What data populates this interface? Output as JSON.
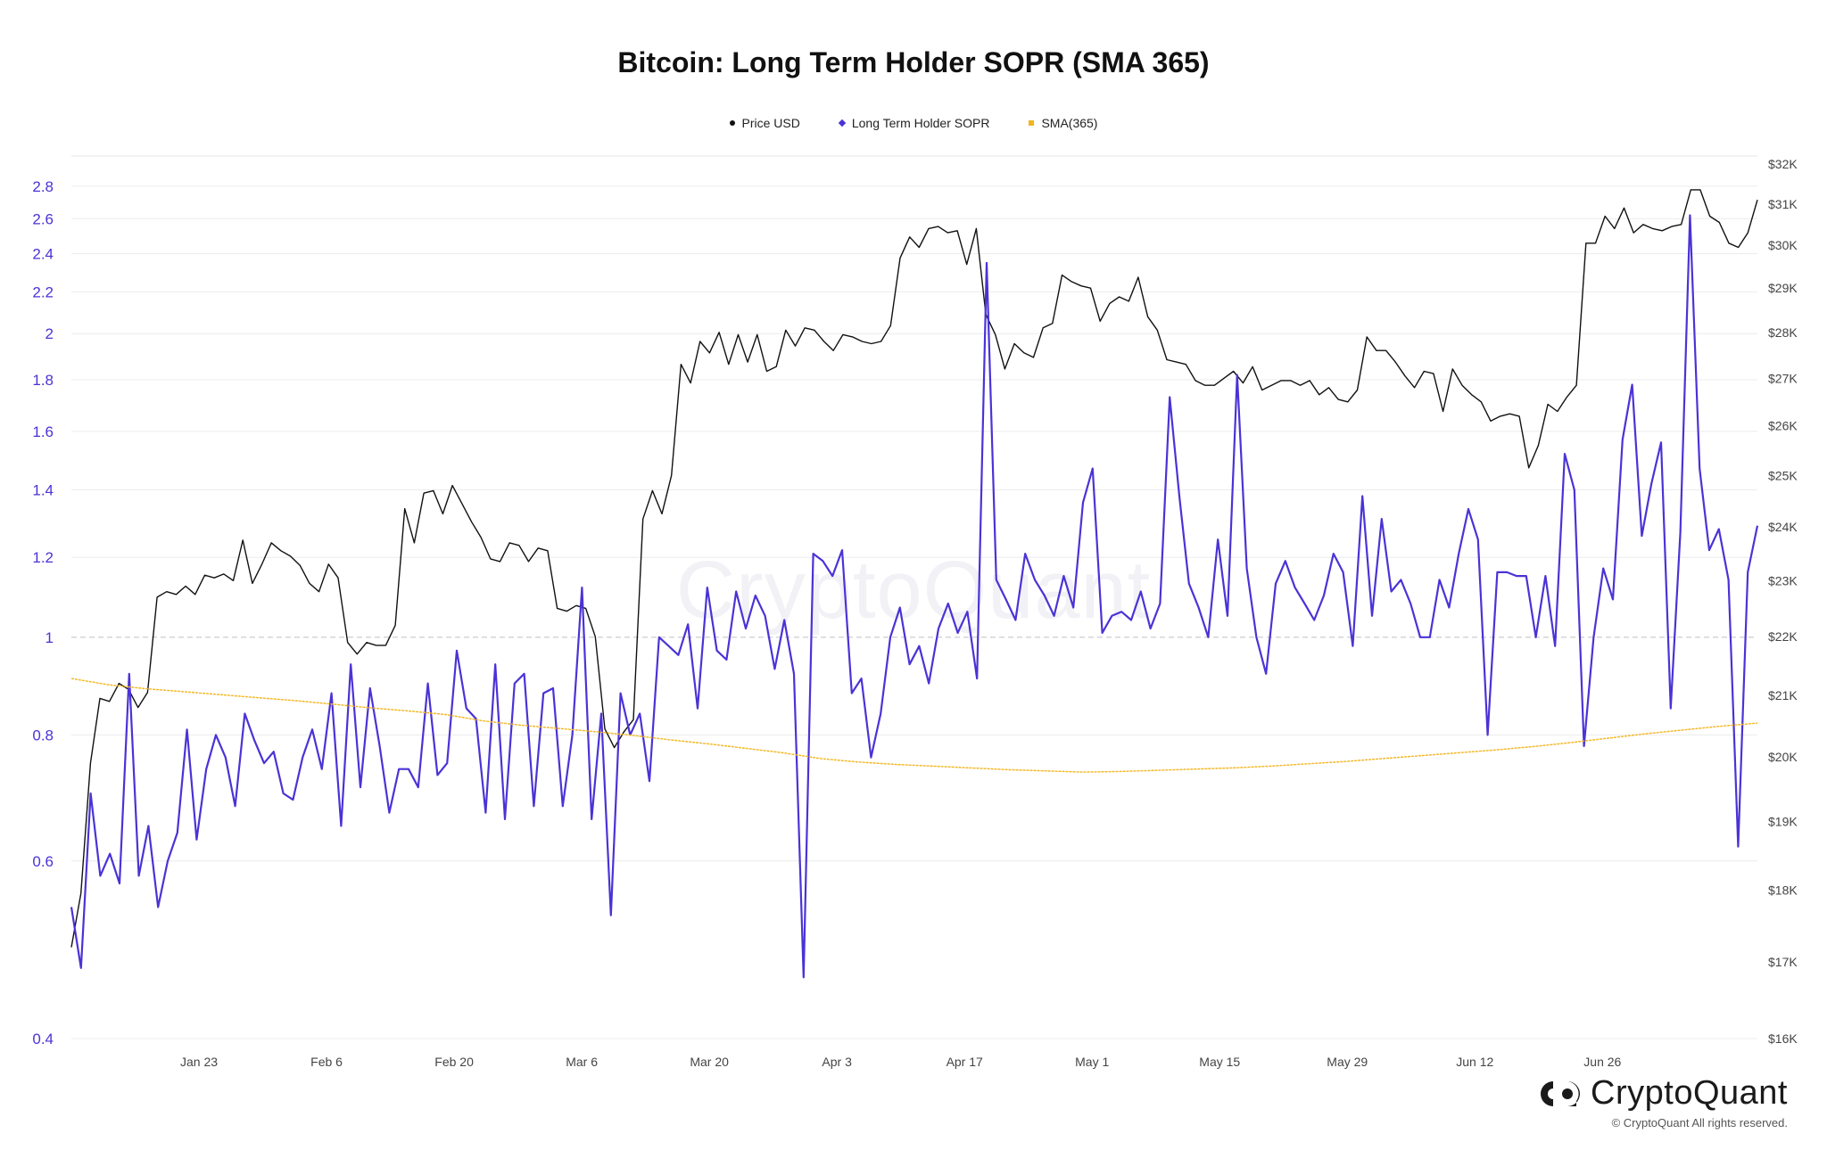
{
  "title": "Bitcoin: Long Term Holder SOPR (SMA 365)",
  "watermark": "CryptoQuant",
  "brand": {
    "name": "CryptoQuant",
    "copyright": "© CryptoQuant All rights reserved."
  },
  "legend": [
    {
      "label": "Price USD",
      "color": "#111111",
      "marker": "circle"
    },
    {
      "label": "Long Term Holder SOPR",
      "color": "#4a33d6",
      "marker": "diamond"
    },
    {
      "label": "SMA(365)",
      "color": "#f2b51c",
      "marker": "square"
    }
  ],
  "chart_data": {
    "type": "line",
    "title": "Bitcoin: Long Term Holder SOPR (SMA 365)",
    "x_range": [
      "2023-01-09",
      "2023-07-13"
    ],
    "x_tick_labels": [
      "Jan 23",
      "Feb 6",
      "Feb 20",
      "Mar 6",
      "Mar 20",
      "Apr 3",
      "Apr 17",
      "May 1",
      "May 15",
      "May 29",
      "Jun 12",
      "Jun 26"
    ],
    "y_left": {
      "scale": "log",
      "range": [
        0.4,
        3.0
      ],
      "ticks": [
        "2.8",
        "2.6",
        "2.4",
        "2.2",
        "2",
        "1.8",
        "1.6",
        "1.4",
        "1.2",
        "1",
        "0.8",
        "0.6",
        "0.4"
      ],
      "reference_line": 1
    },
    "y_right": {
      "scale": "log",
      "range": [
        16000,
        32200
      ],
      "ticks": [
        "$32K",
        "$31K",
        "$30K",
        "$29K",
        "$28K",
        "$27K",
        "$26K",
        "$25K",
        "$24K",
        "$23K",
        "$22K",
        "$21K",
        "$20K",
        "$19K",
        "$18K",
        "$17K",
        "$16K"
      ]
    },
    "grid": true,
    "legend_position": "top-center",
    "series": [
      {
        "name": "Price USD",
        "axis": "right",
        "color": "#111111",
        "values": [
          17200,
          17950,
          19900,
          20950,
          20900,
          21200,
          21100,
          20800,
          21050,
          22700,
          22800,
          22750,
          22900,
          22750,
          23100,
          23050,
          23120,
          23000,
          23750,
          22950,
          23300,
          23700,
          23550,
          23450,
          23280,
          22950,
          22800,
          23300,
          23050,
          21900,
          21700,
          21900,
          21850,
          21850,
          22200,
          24350,
          23700,
          24650,
          24700,
          24250,
          24800,
          24450,
          24100,
          23800,
          23400,
          23350,
          23700,
          23650,
          23350,
          23600,
          23550,
          22500,
          22450,
          22550,
          22500,
          22000,
          20450,
          20150,
          20400,
          20600,
          24150,
          24700,
          24250,
          25000,
          27300,
          26900,
          27800,
          27550,
          28000,
          27300,
          27950,
          27350,
          27950,
          27150,
          27250,
          28050,
          27700,
          28100,
          28050,
          27800,
          27600,
          27950,
          27900,
          27800,
          27750,
          27800,
          28150,
          29700,
          30200,
          29950,
          30400,
          30450,
          30300,
          30350,
          29550,
          30400,
          28400,
          27950,
          27200,
          27750,
          27550,
          27450,
          28100,
          28200,
          29300,
          29150,
          29050,
          29000,
          28250,
          28650,
          28800,
          28700,
          29250,
          28350,
          28050,
          27400,
          27350,
          27300,
          26950,
          26850,
          26850,
          27000,
          27150,
          26900,
          27250,
          26750,
          26850,
          26950,
          26950,
          26850,
          26950,
          26650,
          26800,
          26550,
          26500,
          26750,
          27900,
          27600,
          27600,
          27350,
          27050,
          26800,
          27150,
          27100,
          26300,
          27200,
          26850,
          26650,
          26500,
          26100,
          26200,
          26250,
          26200,
          25150,
          25600,
          26450,
          26300,
          26600,
          26850,
          30050,
          30050,
          30700,
          30400,
          30900,
          30300,
          30500,
          30400,
          30350,
          30450,
          30500,
          31350,
          31350,
          30700,
          30550,
          30050,
          29950,
          30300,
          31100
        ]
      },
      {
        "name": "Long Term Holder SOPR",
        "axis": "left",
        "color": "#4a33d6",
        "values": [
          0.54,
          0.47,
          0.7,
          0.58,
          0.61,
          0.57,
          0.92,
          0.58,
          0.65,
          0.54,
          0.6,
          0.64,
          0.81,
          0.63,
          0.74,
          0.8,
          0.76,
          0.68,
          0.84,
          0.79,
          0.75,
          0.77,
          0.7,
          0.69,
          0.76,
          0.81,
          0.74,
          0.88,
          0.65,
          0.94,
          0.71,
          0.89,
          0.78,
          0.67,
          0.74,
          0.74,
          0.71,
          0.9,
          0.73,
          0.75,
          0.97,
          0.85,
          0.83,
          0.67,
          0.94,
          0.66,
          0.9,
          0.92,
          0.68,
          0.88,
          0.89,
          0.68,
          0.8,
          1.12,
          0.66,
          0.84,
          0.53,
          0.88,
          0.8,
          0.84,
          0.72,
          1.0,
          0.98,
          0.96,
          1.03,
          0.85,
          1.12,
          0.97,
          0.95,
          1.11,
          1.02,
          1.1,
          1.05,
          0.93,
          1.04,
          0.92,
          0.46,
          1.21,
          1.19,
          1.15,
          1.22,
          0.88,
          0.91,
          0.76,
          0.84,
          1.0,
          1.07,
          0.94,
          0.98,
          0.9,
          1.02,
          1.08,
          1.01,
          1.06,
          0.91,
          2.35,
          1.14,
          1.09,
          1.04,
          1.21,
          1.14,
          1.1,
          1.05,
          1.15,
          1.07,
          1.36,
          1.47,
          1.01,
          1.05,
          1.06,
          1.04,
          1.11,
          1.02,
          1.08,
          1.73,
          1.38,
          1.13,
          1.07,
          1.0,
          1.25,
          1.05,
          1.82,
          1.17,
          1.0,
          0.92,
          1.13,
          1.19,
          1.12,
          1.08,
          1.04,
          1.1,
          1.21,
          1.16,
          0.98,
          1.38,
          1.05,
          1.31,
          1.11,
          1.14,
          1.08,
          1.0,
          1.0,
          1.14,
          1.07,
          1.21,
          1.34,
          1.25,
          0.8,
          1.16,
          1.16,
          1.15,
          1.15,
          1.0,
          1.15,
          0.98,
          1.52,
          1.4,
          0.78,
          1.0,
          1.17,
          1.09,
          1.57,
          1.78,
          1.26,
          1.42,
          1.56,
          0.85,
          1.27,
          2.62,
          1.47,
          1.22,
          1.28,
          1.14,
          0.62,
          1.16,
          1.29
        ]
      },
      {
        "name": "SMA(365)",
        "axis": "left",
        "color": "#f2b51c",
        "values": [
          0.91,
          0.897,
          0.889,
          0.883,
          0.877,
          0.871,
          0.865,
          0.858,
          0.851,
          0.845,
          0.838,
          0.826,
          0.818,
          0.812,
          0.806,
          0.799,
          0.791,
          0.784,
          0.776,
          0.768,
          0.758,
          0.752,
          0.748,
          0.745,
          0.742,
          0.739,
          0.737,
          0.735,
          0.736,
          0.738,
          0.74,
          0.742,
          0.745,
          0.749,
          0.753,
          0.758,
          0.763,
          0.768,
          0.773,
          0.779,
          0.786,
          0.794,
          0.802,
          0.809,
          0.816,
          0.822
        ]
      }
    ]
  }
}
